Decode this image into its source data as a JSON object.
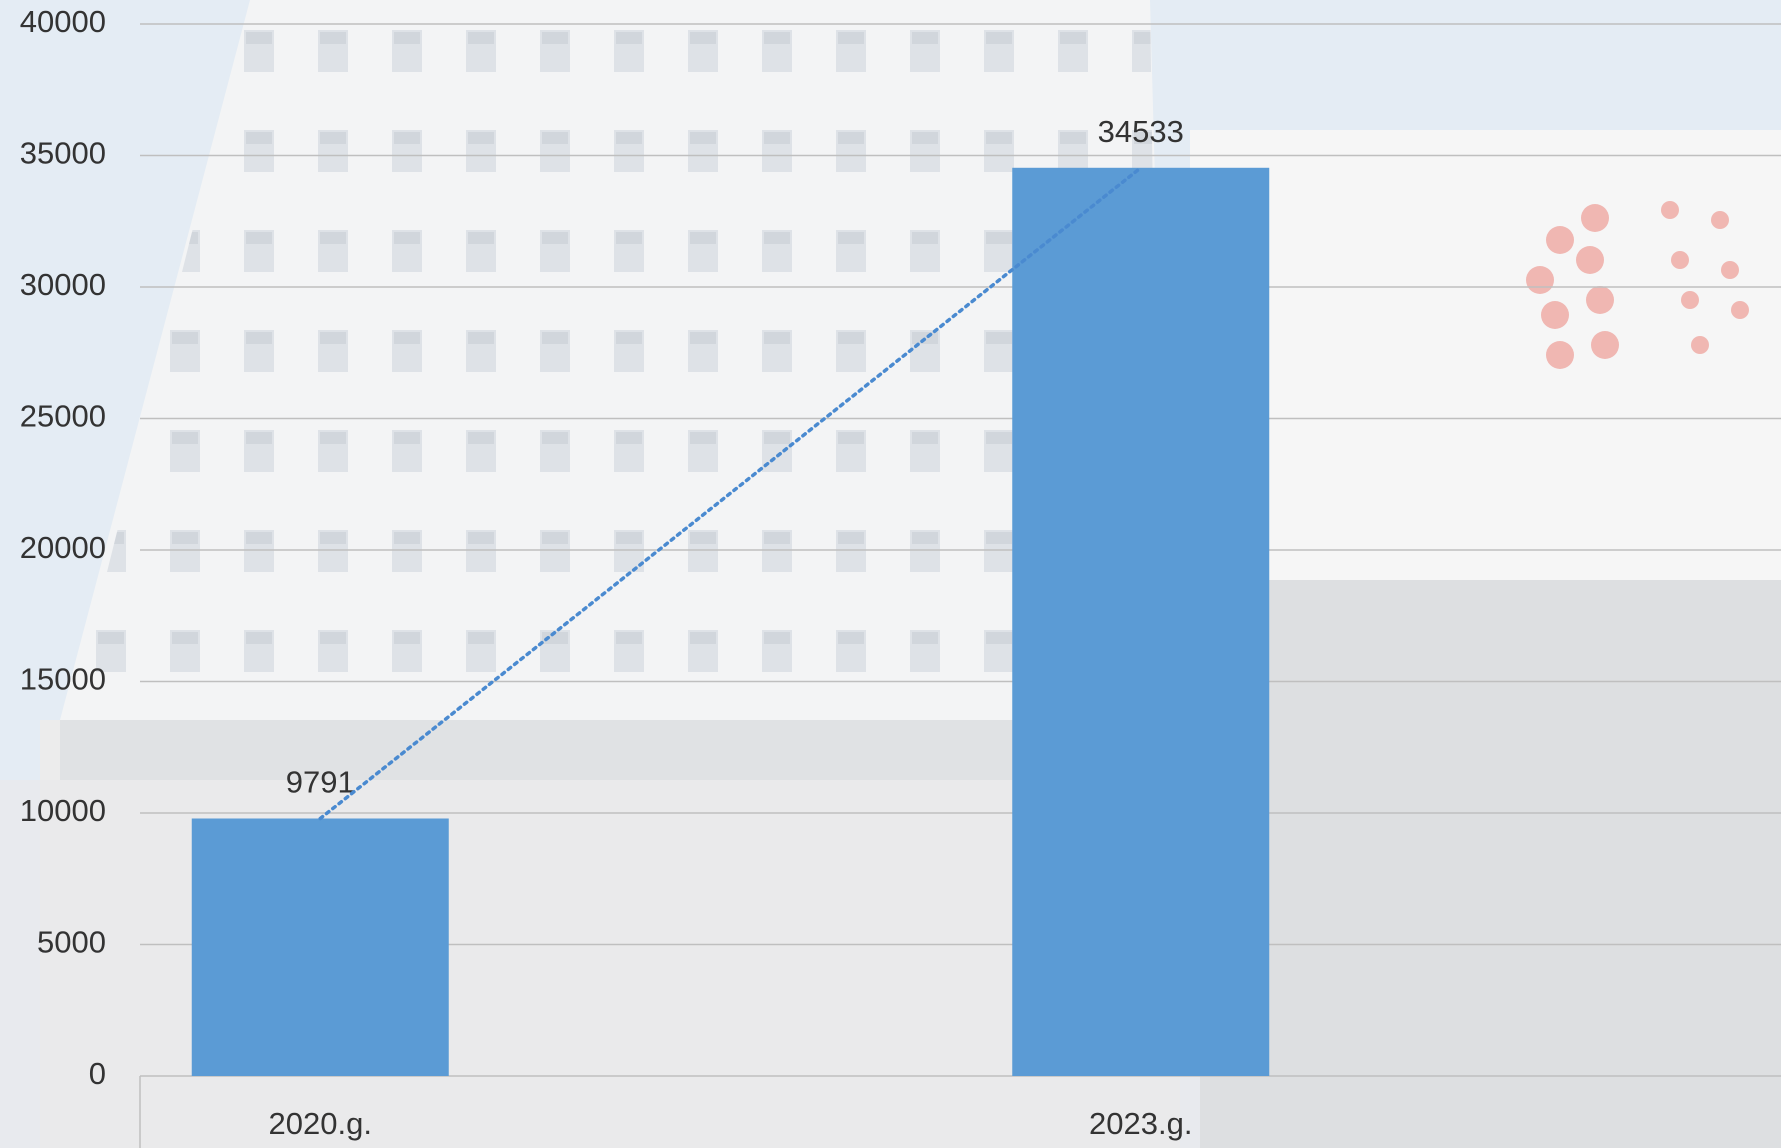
{
  "chart_data": {
    "type": "bar",
    "categories": [
      "2020.g.",
      "2023.g."
    ],
    "values": [
      9791,
      34533
    ],
    "color": "#5b9bd5",
    "ylim": [
      0,
      40000
    ],
    "yticks": [
      0,
      5000,
      10000,
      15000,
      20000,
      25000,
      30000,
      35000,
      40000
    ],
    "grid": true,
    "data_labels": true,
    "trendline": {
      "style": "dotted",
      "color": "#4a8ad0"
    }
  }
}
